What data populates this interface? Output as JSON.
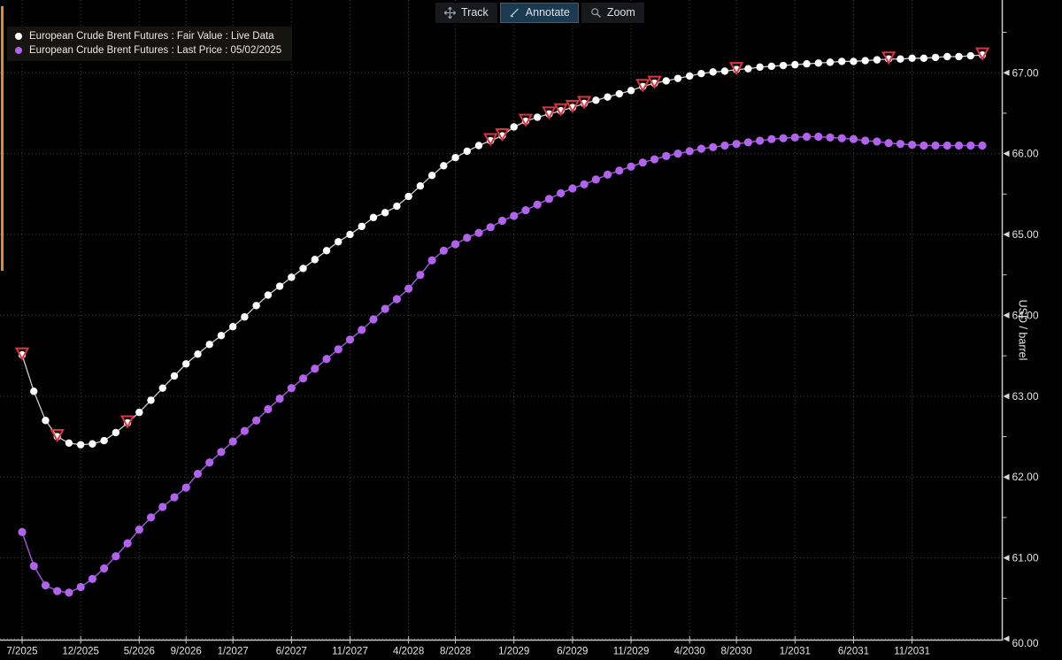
{
  "toolbar": {
    "buttons": [
      {
        "label": "Track",
        "icon": "move-crosshair-icon",
        "active": false
      },
      {
        "label": "Annotate",
        "icon": "pencil-icon",
        "active": true
      },
      {
        "label": "Zoom",
        "icon": "magnifier-icon",
        "active": false
      }
    ]
  },
  "legend": {
    "items": [
      {
        "label": "European Crude Brent Futures : Fair Value : Live Data",
        "color": "#ffffff"
      },
      {
        "label": "European Crude Brent Futures : Last Price : 05/02/2025",
        "color": "#b163ee"
      }
    ]
  },
  "chart_data": {
    "type": "line",
    "title": "",
    "xlabel": "",
    "ylabel": "USD / barrel",
    "ylim": [
      60.0,
      67.9
    ],
    "grid": true,
    "legend_position": "top-left",
    "x_unit": "futures contract month (monthly, 7/2025 - 5/2032)",
    "y_ticks": [
      {
        "v": 67,
        "label": "67.00"
      },
      {
        "v": 66,
        "label": "66.00"
      },
      {
        "v": 65,
        "label": "65.00"
      },
      {
        "v": 64,
        "label": "64.00"
      },
      {
        "v": 63,
        "label": "63.00"
      },
      {
        "v": 62,
        "label": "62.00"
      },
      {
        "v": 61,
        "label": "61.00"
      },
      {
        "v": 60,
        "label": "60.00"
      }
    ],
    "y_minor_ticks": [
      67.5,
      66.5,
      65.5,
      64.5,
      63.5,
      62.5,
      61.5,
      60.5
    ],
    "x_ticks": [
      {
        "m": 0,
        "label": "7/2025"
      },
      {
        "m": 5,
        "label": "12/2025"
      },
      {
        "m": 10,
        "label": "5/2026"
      },
      {
        "m": 14,
        "label": "9/2026"
      },
      {
        "m": 18,
        "label": "1/2027"
      },
      {
        "m": 23,
        "label": "6/2027"
      },
      {
        "m": 28,
        "label": "11/2027"
      },
      {
        "m": 33,
        "label": "4/2028"
      },
      {
        "m": 37,
        "label": "8/2028"
      },
      {
        "m": 42,
        "label": "1/2029"
      },
      {
        "m": 47,
        "label": "6/2029"
      },
      {
        "m": 52,
        "label": "11/2029"
      },
      {
        "m": 57,
        "label": "4/2030"
      },
      {
        "m": 61,
        "label": "8/2030"
      },
      {
        "m": 66,
        "label": "1/2031"
      },
      {
        "m": 71,
        "label": "6/2031"
      },
      {
        "m": 76,
        "label": "11/2031"
      }
    ],
    "series": [
      {
        "name": "European Crude Brent Futures : Fair Value : Live Data",
        "color": "#ffffff",
        "line_color": "#cfcfcf",
        "marker_radius": 4.2,
        "values": [
          63.51,
          63.06,
          62.7,
          62.5,
          62.42,
          62.4,
          62.41,
          62.45,
          62.55,
          62.67,
          62.8,
          62.95,
          63.1,
          63.25,
          63.4,
          63.52,
          63.64,
          63.75,
          63.86,
          63.98,
          64.12,
          64.25,
          64.36,
          64.47,
          64.58,
          64.69,
          64.8,
          64.91,
          65.0,
          65.1,
          65.21,
          65.27,
          65.35,
          65.47,
          65.6,
          65.73,
          65.85,
          65.95,
          66.03,
          66.1,
          66.16,
          66.22,
          66.33,
          66.4,
          66.45,
          66.49,
          66.53,
          66.57,
          66.62,
          66.66,
          66.7,
          66.74,
          66.78,
          66.83,
          66.87,
          66.9,
          66.93,
          66.96,
          66.99,
          67.01,
          67.02,
          67.04,
          67.05,
          67.07,
          67.08,
          67.09,
          67.1,
          67.11,
          67.12,
          67.13,
          67.14,
          67.14,
          67.15,
          67.16,
          67.17,
          67.17,
          67.18,
          67.18,
          67.19,
          67.2,
          67.2,
          67.21,
          67.22
        ]
      },
      {
        "name": "European Crude Brent Futures : Last Price : 05/02/2025",
        "color": "#b163ee",
        "line_color": "#9a54d4",
        "marker_radius": 4.6,
        "values": [
          61.32,
          60.9,
          60.66,
          60.59,
          60.57,
          60.64,
          60.74,
          60.87,
          61.02,
          61.18,
          61.35,
          61.5,
          61.63,
          61.75,
          61.87,
          62.04,
          62.18,
          62.31,
          62.44,
          62.57,
          62.7,
          62.84,
          62.97,
          63.1,
          63.22,
          63.34,
          63.46,
          63.58,
          63.7,
          63.82,
          63.95,
          64.08,
          64.2,
          64.33,
          64.5,
          64.68,
          64.8,
          64.88,
          64.96,
          65.02,
          65.09,
          65.17,
          65.23,
          65.3,
          65.37,
          65.44,
          65.51,
          65.57,
          65.62,
          65.68,
          65.74,
          65.79,
          65.84,
          65.89,
          65.93,
          65.97,
          66.0,
          66.03,
          66.06,
          66.08,
          66.1,
          66.12,
          66.14,
          66.16,
          66.18,
          66.19,
          66.2,
          66.21,
          66.21,
          66.2,
          66.19,
          66.18,
          66.16,
          66.15,
          66.13,
          66.12,
          66.11,
          66.1,
          66.1,
          66.1,
          66.1,
          66.1,
          66.1
        ]
      }
    ],
    "annotations": {
      "marker": "open-triangle-down",
      "color": "#dc3440",
      "series_index": 0,
      "month_indices": [
        0,
        3,
        9,
        40,
        41,
        43,
        45,
        46,
        47,
        48,
        53,
        54,
        61,
        74,
        82
      ]
    }
  }
}
